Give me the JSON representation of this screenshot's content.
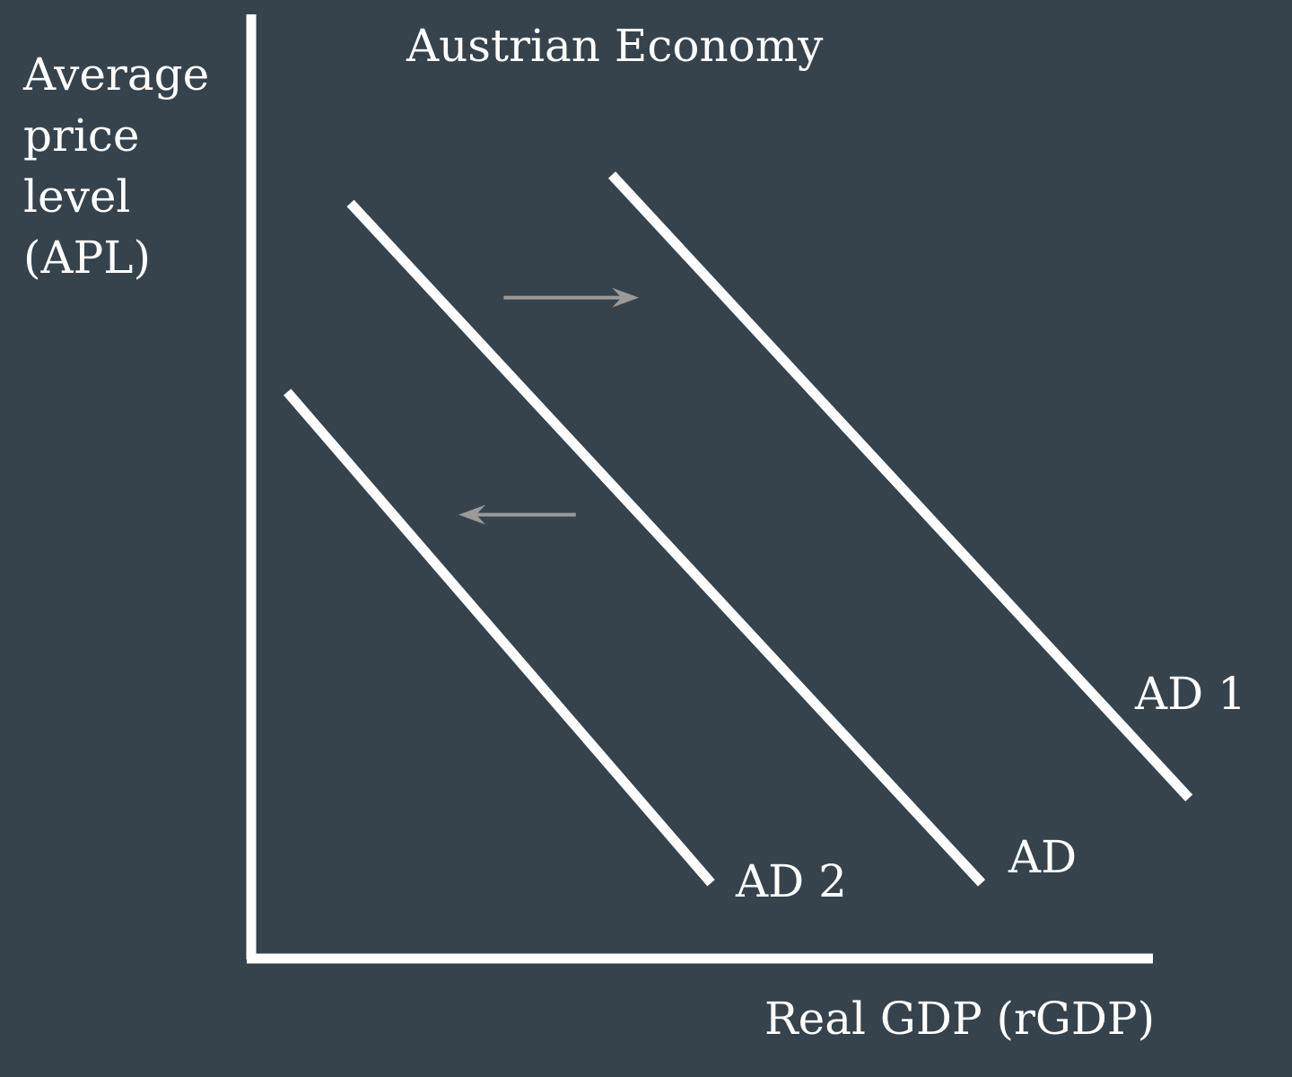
{
  "chart_data": {
    "type": "line",
    "title": "Austrian Economy",
    "ylabel_lines": [
      "Average",
      "price",
      "level",
      "(APL)"
    ],
    "xlabel": "Real GDP (rGDP)",
    "xlim": [
      0,
      100
    ],
    "ylim": [
      0,
      100
    ],
    "grid": false,
    "colors": {
      "background": "#37434c",
      "curves": "#ffffff",
      "axes": "#ffffff",
      "arrows": "#9a9a9a"
    },
    "series": [
      {
        "name": "AD 1",
        "points": [
          [
            40,
            83
          ],
          [
            104,
            17
          ]
        ]
      },
      {
        "name": "AD",
        "points": [
          [
            11,
            80
          ],
          [
            81,
            8
          ]
        ]
      },
      {
        "name": "AD 2",
        "points": [
          [
            4,
            60
          ],
          [
            51,
            8
          ]
        ]
      }
    ],
    "shift_arrows": [
      {
        "from": [
          28,
          70
        ],
        "to": [
          43,
          70
        ],
        "direction": "right"
      },
      {
        "from": [
          36,
          47
        ],
        "to": [
          23,
          47
        ],
        "direction": "left"
      }
    ]
  }
}
